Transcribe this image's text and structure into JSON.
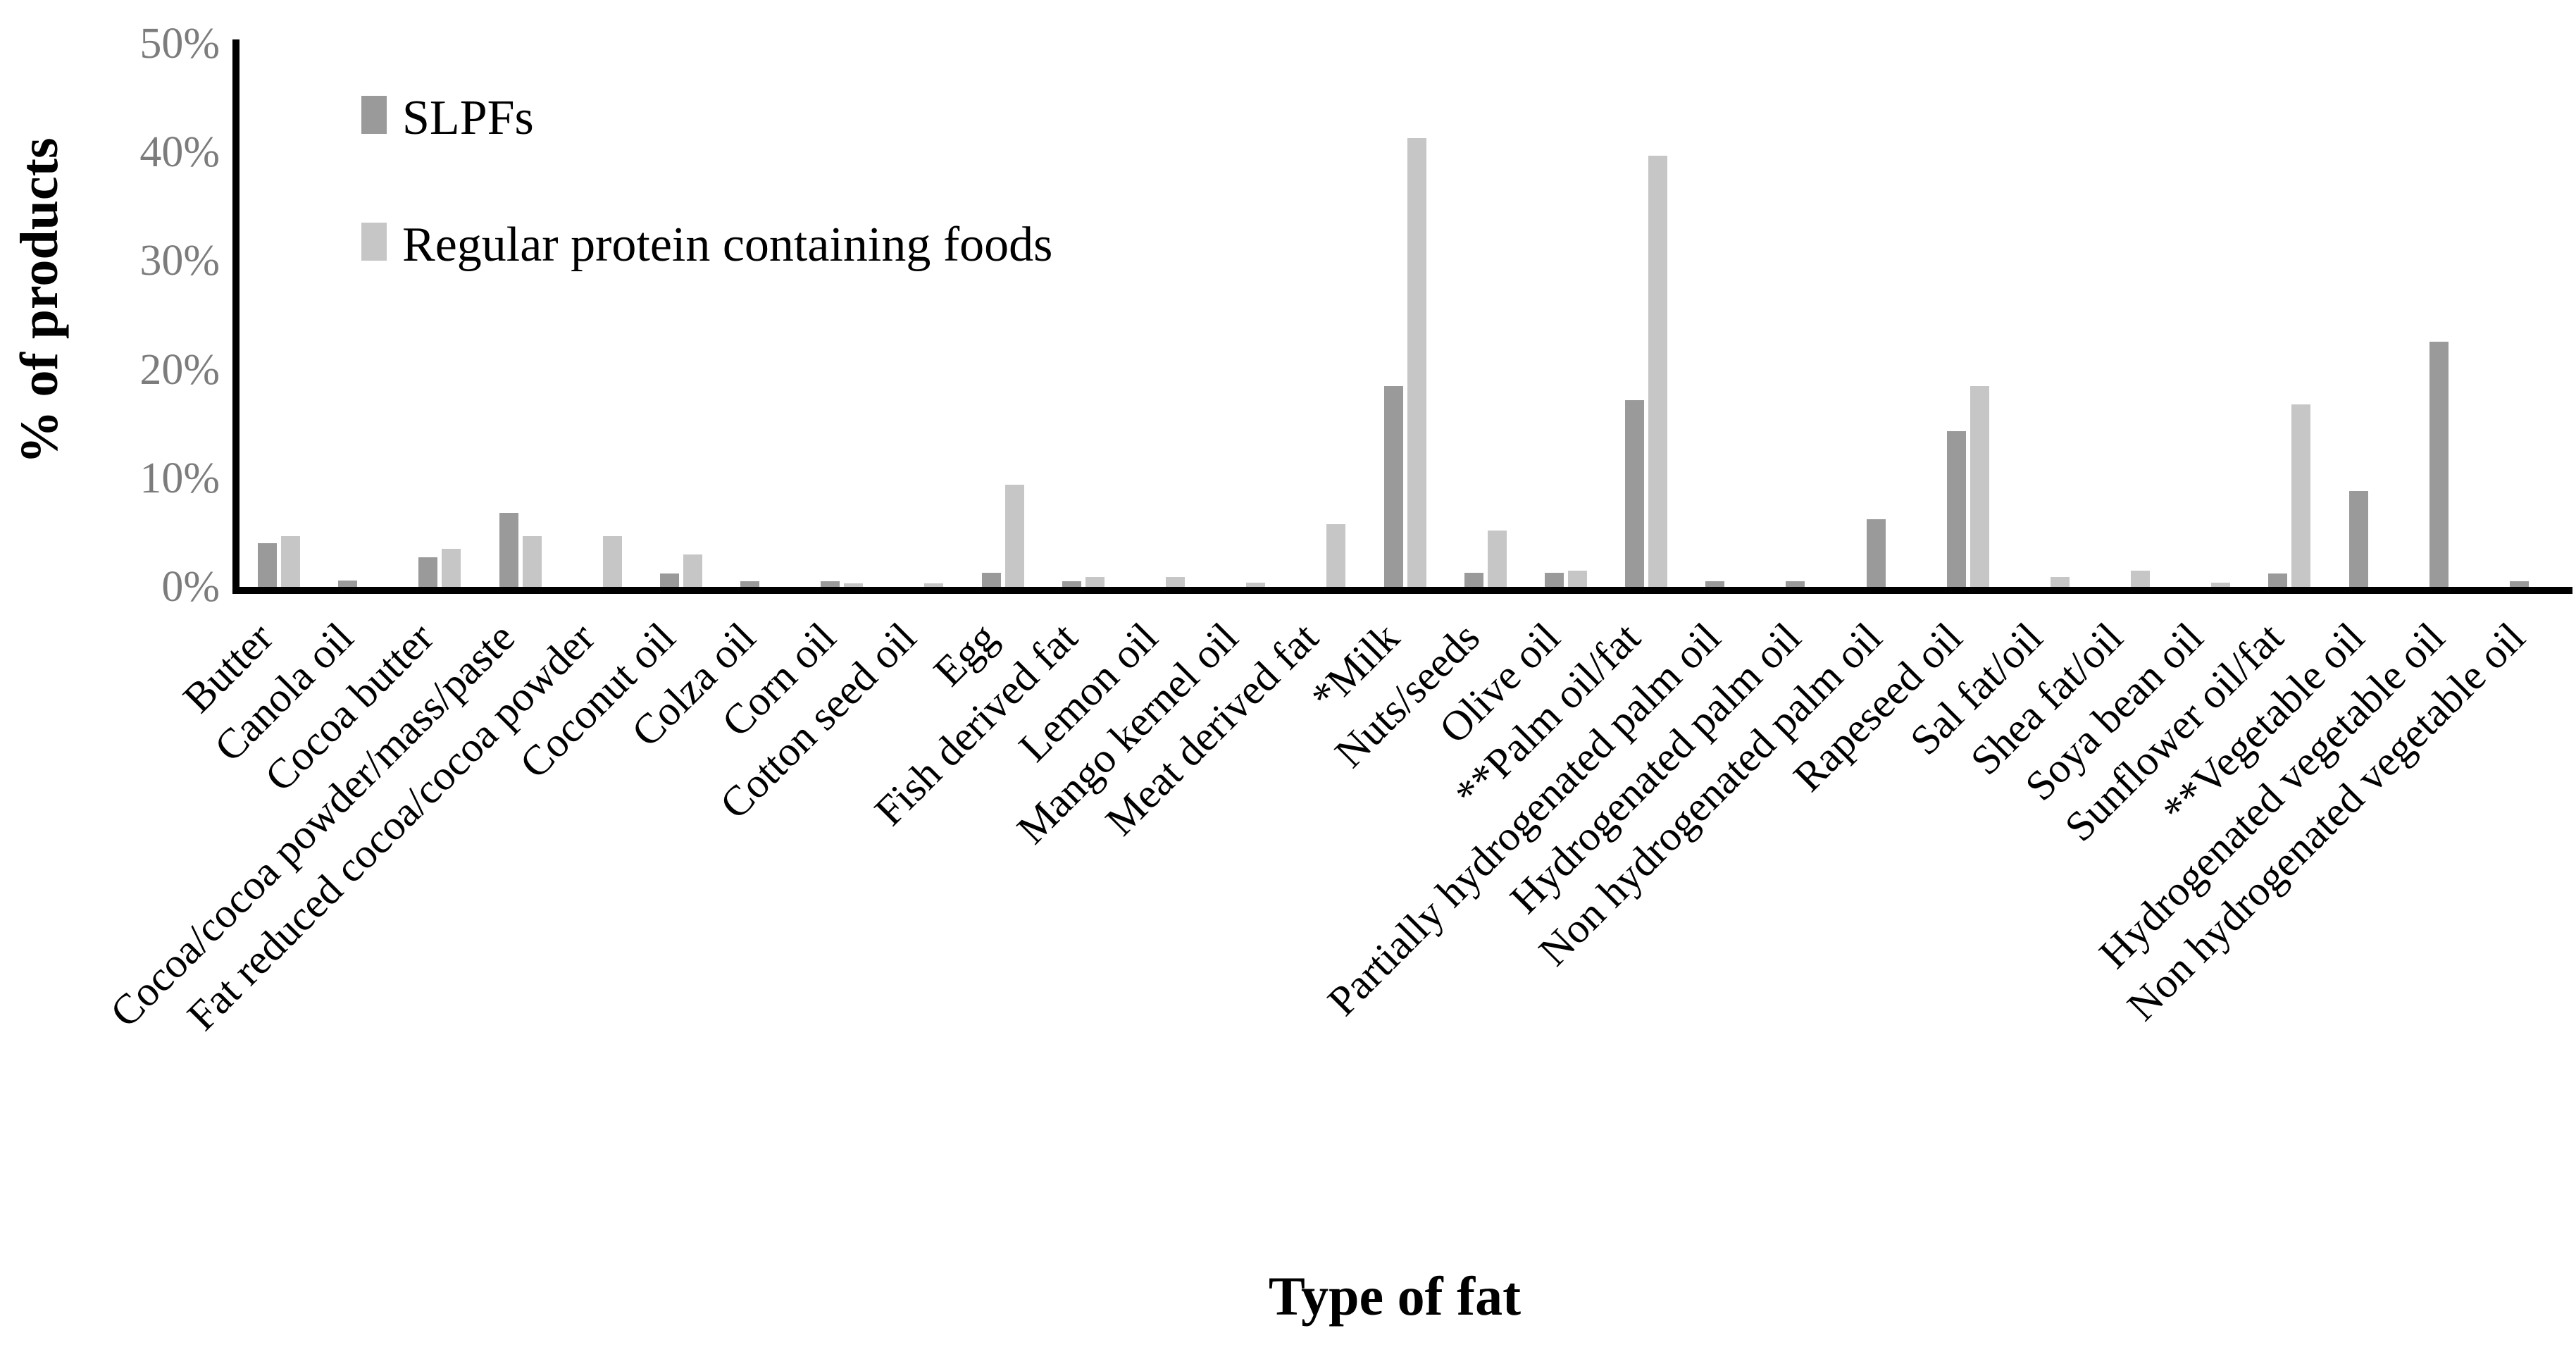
{
  "figure": {
    "y_axis_title": "% of products",
    "x_axis_title": "Type of fat"
  },
  "legend": {
    "items": [
      {
        "label": "SLPFs",
        "color": "#9a9a9a"
      },
      {
        "label": "Regular protein containing foods",
        "color": "#c6c6c6"
      }
    ]
  },
  "chart_data": {
    "type": "bar",
    "title": "",
    "xlabel": "Type of fat",
    "ylabel": "% of products",
    "ylim": [
      0,
      50
    ],
    "ytick_values": [
      0,
      10,
      20,
      30,
      40,
      50
    ],
    "ytick_labels": [
      "0%",
      "10%",
      "20%",
      "30%",
      "40%",
      "50%"
    ],
    "grid": false,
    "legend_position": "top-left",
    "categories": [
      "Butter",
      "Canola oil",
      "Cocoa butter",
      "Cocoa/cocoa powder/mass/paste",
      "Fat reduced cocoa/cocoa powder",
      "Coconut oil",
      "Colza oil",
      "Corn oil",
      "Cotton seed oil",
      "Egg",
      "Fish derived fat",
      "Lemon oil",
      "Mango kernel oil",
      "Meat derived fat",
      "*Milk",
      "Nuts/seeds",
      "Olive oil",
      "**Palm oil/fat",
      "Partially hydrogenated palm oil",
      "Hydrogenated palm oil",
      "Non hydrogenated palm oil",
      "Rapeseed oil",
      "Sal fat/oil",
      "Shea fat/oil",
      "Soya bean oil",
      "Sunflower oil/fat",
      "**Vegetable oil",
      "Hydrogenated vegetable oil",
      "Non hydrogenated vegetable oil"
    ],
    "series": [
      {
        "name": "SLPFs",
        "color": "#9a9a9a",
        "values": [
          4.0,
          0.6,
          2.7,
          6.8,
          0,
          1.2,
          0.5,
          0.5,
          0,
          1.3,
          0.5,
          0,
          0,
          0,
          18.5,
          1.3,
          1.3,
          17.2,
          0.5,
          0.5,
          6.2,
          14.3,
          0,
          0,
          0,
          1.2,
          8.8,
          22.6,
          0.5
        ]
      },
      {
        "name": "Regular protein containing foods",
        "color": "#c6c6c6",
        "values": [
          4.7,
          0,
          3.5,
          4.7,
          4.7,
          3.0,
          0,
          0.3,
          0.3,
          9.4,
          0.9,
          0.9,
          0.4,
          5.8,
          41.3,
          5.2,
          1.5,
          39.7,
          0,
          0,
          0,
          18.5,
          0.9,
          1.5,
          0.4,
          16.8,
          0,
          0,
          0
        ]
      }
    ]
  }
}
